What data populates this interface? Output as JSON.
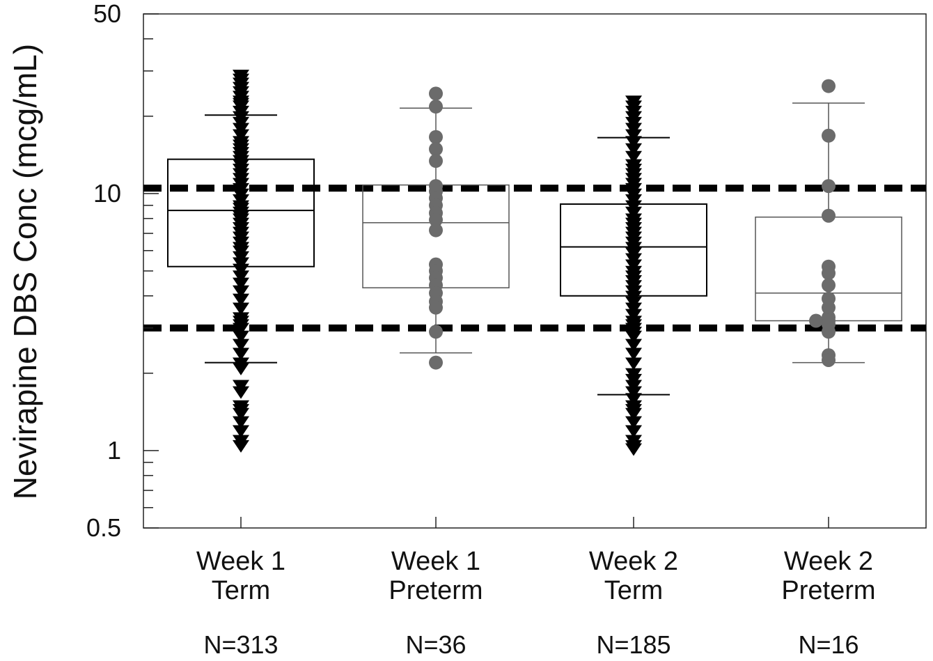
{
  "chart_data": {
    "type": "box",
    "scale": "log",
    "ylabel": "Nevirapine DBS Conc (mcg/mL)",
    "ylim": [
      0.5,
      50
    ],
    "y_ticks": [
      {
        "value": 50,
        "label": "50"
      },
      {
        "value": 10,
        "label": "10"
      },
      {
        "value": 1,
        "label": "1"
      },
      {
        "value": 0.5,
        "label": "0.5"
      }
    ],
    "reference_lines": [
      10.5,
      3.0
    ],
    "groups": [
      {
        "label_line1": "Week 1",
        "label_line2": "Term",
        "n_label": "N=313",
        "marker": "triangle-down",
        "color": "#000000",
        "box_stroke": "#000000",
        "box": {
          "q1": 5.2,
          "median": 8.6,
          "q3": 13.6,
          "whisker_low": 2.2,
          "whisker_high": 20.2
        },
        "points": [
          29,
          28,
          27,
          26,
          25,
          24,
          23,
          22.5,
          22,
          21,
          20,
          19,
          18,
          17,
          16,
          15.5,
          15,
          14.5,
          14,
          13.5,
          13,
          12.5,
          12,
          11.5,
          11,
          10.5,
          10,
          9.5,
          9,
          8.8,
          8.5,
          8.2,
          8,
          7.7,
          7.4,
          7.1,
          6.8,
          6.5,
          6.2,
          6,
          5.7,
          5.4,
          5.1,
          4.8,
          4.5,
          4.2,
          3.9,
          3.6,
          3.3,
          3.2,
          3.1,
          3,
          2.8,
          2.6,
          2.4,
          2.2,
          2.1,
          1.8,
          1.7,
          1.5,
          1.45,
          1.4,
          1.3,
          1.2,
          1.1,
          1.05
        ]
      },
      {
        "label_line1": "Week 1",
        "label_line2": "Preterm",
        "n_label": "N=36",
        "marker": "circle",
        "color": "#6b6b6b",
        "box_stroke": "#555555",
        "box": {
          "q1": 4.3,
          "median": 7.7,
          "q3": 10.8,
          "whisker_low": 2.4,
          "whisker_high": 21.5
        },
        "points": [
          24.5,
          21.8,
          16.6,
          14.9,
          13.4,
          10.7,
          10.2,
          9.6,
          9.0,
          8.4,
          7.9,
          7.2,
          5.3,
          5.0,
          4.7,
          4.4,
          4.1,
          3.8,
          3.6,
          2.9,
          2.2
        ]
      },
      {
        "label_line1": "Week 2",
        "label_line2": "Term",
        "n_label": "N=185",
        "marker": "triangle-down",
        "color": "#000000",
        "box_stroke": "#000000",
        "box": {
          "q1": 4.0,
          "median": 6.2,
          "q3": 9.1,
          "whisker_low": 1.65,
          "whisker_high": 16.5
        },
        "points": [
          23,
          22,
          21,
          20,
          19,
          18,
          17,
          16,
          15,
          14,
          13,
          12.5,
          12,
          11.5,
          11,
          10.5,
          10,
          9.5,
          9,
          8.5,
          8,
          7.7,
          7.4,
          7.1,
          6.8,
          6.5,
          6.2,
          5.9,
          5.6,
          5.3,
          5,
          4.8,
          4.6,
          4.4,
          4.2,
          4,
          3.8,
          3.6,
          3.4,
          3.2,
          3.1,
          3,
          2.9,
          2.8,
          2.6,
          2.4,
          2.2,
          2,
          1.9,
          1.8,
          1.7,
          1.6,
          1.5,
          1.45,
          1.4,
          1.3,
          1.2,
          1.1,
          1.05,
          1.02
        ]
      },
      {
        "label_line1": "Week 2",
        "label_line2": "Preterm",
        "n_label": "N=16",
        "marker": "circle",
        "color": "#6b6b6b",
        "box_stroke": "#555555",
        "box": {
          "q1": 3.2,
          "median": 4.1,
          "q3": 8.1,
          "whisker_low": 2.2,
          "whisker_high": 22.5
        },
        "points": [
          26.2,
          16.8,
          10.7,
          8.2,
          5.2,
          4.9,
          4.4,
          3.9,
          3.6,
          3.3,
          3.2,
          3.2,
          3.1,
          2.9,
          2.35,
          2.25
        ]
      }
    ]
  }
}
